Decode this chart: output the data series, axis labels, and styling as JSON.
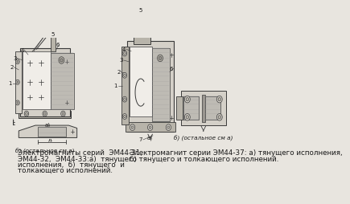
{
  "bg_color": "#e8e5df",
  "line_color": "#3a3a3a",
  "text_color": "#1a1a1a",
  "gray_light": "#d4d0c8",
  "gray_mid": "#b8b4aa",
  "gray_dark": "#9a9690",
  "gray_hatch": "#c8c4bc",
  "white_area": "#f0ede8",
  "caption_left": [
    "Электромагниты серий  ЭМ44-31,",
    "ЭМ44-32,  ЭМ44-33:а)  тянущего",
    "исполнения,  б)  тянущего  и",
    "толкающего исполнений."
  ],
  "caption_right": [
    "Электромагнит серии ЭМ44-37: а) тянущего исполнения,",
    "б) тянущего и толкающего исполнений."
  ],
  "label_b_left": "б) (остальное см а)",
  "label_b_right": "б) (остальное см а)",
  "font_size_caption": 6.3,
  "font_size_small": 5.2,
  "font_size_num": 5.0
}
